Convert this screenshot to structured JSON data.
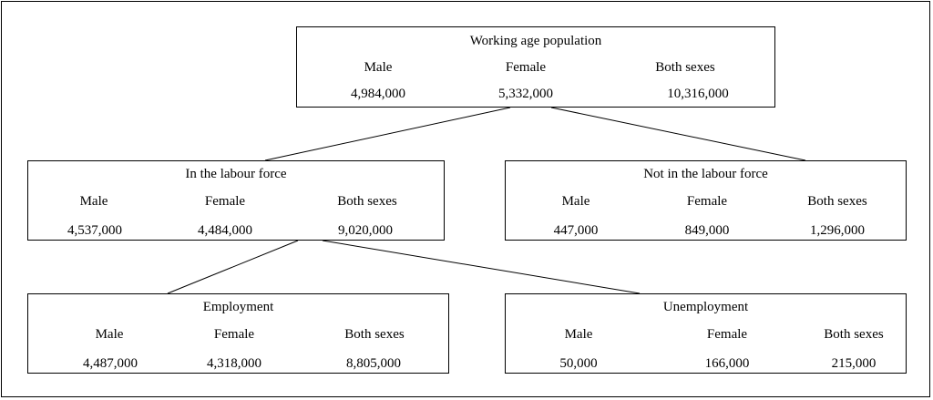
{
  "nodes": {
    "working_age": {
      "title": "Working age population",
      "headers": [
        "Male",
        "Female",
        "Both sexes"
      ],
      "values": [
        "4,984,000",
        "5,332,000",
        "10,316,000"
      ]
    },
    "in_labour_force": {
      "title": "In the labour force",
      "headers": [
        "Male",
        "Female",
        "Both sexes"
      ],
      "values": [
        "4,537,000",
        "4,484,000",
        "9,020,000"
      ]
    },
    "not_in_labour_force": {
      "title": "Not in the labour force",
      "headers": [
        "Male",
        "Female",
        "Both sexes"
      ],
      "values": [
        "447,000",
        "849,000",
        "1,296,000"
      ]
    },
    "employment": {
      "title": "Employment",
      "headers": [
        "Male",
        "Female",
        "Both sexes"
      ],
      "values": [
        "4,487,000",
        "4,318,000",
        "8,805,000"
      ]
    },
    "unemployment": {
      "title": "Unemployment",
      "headers": [
        "Male",
        "Female",
        "Both sexes"
      ],
      "values": [
        "50,000",
        "166,000",
        "215,000"
      ]
    }
  },
  "edges": [
    {
      "from": "working_age",
      "to": "in_labour_force"
    },
    {
      "from": "working_age",
      "to": "not_in_labour_force"
    },
    {
      "from": "in_labour_force",
      "to": "employment"
    },
    {
      "from": "in_labour_force",
      "to": "unemployment"
    }
  ]
}
